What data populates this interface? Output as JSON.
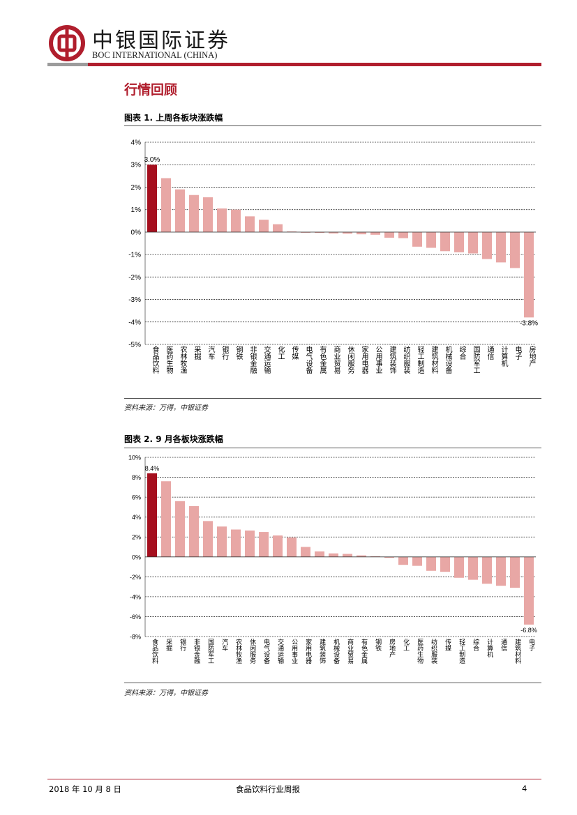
{
  "header": {
    "brand_cn": "中银国际证券",
    "brand_en": "BOC INTERNATIONAL (CHINA)",
    "logo_icon": "boc-logo-icon",
    "accent_color": "#b01e2d"
  },
  "section_title": "行情回顾",
  "charts": [
    {
      "title": "图表 1. 上周各板块涨跌幅",
      "source": "资料来源：万得，中银证券"
    },
    {
      "title": "图表 2. 9 月各板块涨跌幅",
      "source": "资料来源：万得，中银证券"
    }
  ],
  "chart_data": [
    {
      "type": "bar",
      "title": "图表 1. 上周各板块涨跌幅",
      "categories": [
        "食品饮料",
        "医药生物",
        "农林牧渔",
        "采掘",
        "汽车",
        "银行",
        "钢铁",
        "非银金融",
        "交通运输",
        "化工",
        "传媒",
        "电气设备",
        "有色金属",
        "商业贸易",
        "休闲服务",
        "家用电器",
        "公用事业",
        "建筑装饰",
        "纺织服装",
        "轻工制造",
        "建筑材料",
        "机械设备",
        "综合",
        "国防军工",
        "通信",
        "计算机",
        "电子",
        "房地产"
      ],
      "values": [
        3.0,
        2.4,
        1.9,
        1.65,
        1.55,
        1.05,
        1.0,
        0.7,
        0.55,
        0.35,
        0.0,
        -0.02,
        -0.04,
        -0.06,
        -0.07,
        -0.1,
        -0.12,
        -0.25,
        -0.27,
        -0.65,
        -0.7,
        -0.85,
        -0.9,
        -0.95,
        -1.2,
        -1.35,
        -1.6,
        -3.8
      ],
      "ylim": [
        -5,
        4
      ],
      "yticks": [
        4,
        3,
        2,
        1,
        0,
        -1,
        -2,
        -3,
        -4,
        -5
      ],
      "ytick_labels": [
        "4%",
        "3%",
        "2%",
        "1%",
        "0%",
        "-1%",
        "-2%",
        "-3%",
        "-4%",
        "-5%"
      ],
      "data_labels": [
        {
          "index": 0,
          "text": "3.0%"
        },
        {
          "index": 27,
          "text": "-3.8%"
        }
      ],
      "highlight_index": 0,
      "colors": {
        "highlight": "#a50f1e",
        "bar": "#e8a7a5",
        "grid": "#333333"
      },
      "grid": true
    },
    {
      "type": "bar",
      "title": "图表 2. 9 月各板块涨跌幅",
      "categories": [
        "食品饮料",
        "采掘",
        "银行",
        "非银金融",
        "国防军工",
        "汽车",
        "农林牧渔",
        "休闲服务",
        "电气设备",
        "交通运输",
        "公用事业",
        "家用电器",
        "建筑装饰",
        "机械设备",
        "商业贸易",
        "有色金属",
        "钢铁",
        "房地产",
        "化工",
        "医药生物",
        "纺织服装",
        "传媒",
        "轻工制造",
        "综合",
        "计算机",
        "通信",
        "建筑材料",
        "电子"
      ],
      "values": [
        8.4,
        7.6,
        5.6,
        5.1,
        3.6,
        3.05,
        2.75,
        2.65,
        2.5,
        2.15,
        1.95,
        1.0,
        0.55,
        0.35,
        0.3,
        0.15,
        0.02,
        -0.1,
        -0.8,
        -0.9,
        -1.4,
        -1.5,
        -2.1,
        -2.3,
        -2.7,
        -2.9,
        -3.1,
        -6.8
      ],
      "ylim": [
        -8,
        10
      ],
      "yticks": [
        10,
        8,
        6,
        4,
        2,
        0,
        -2,
        -4,
        -6,
        -8
      ],
      "ytick_labels": [
        "10%",
        "8%",
        "6%",
        "4%",
        "2%",
        "0%",
        "-2%",
        "-4%",
        "-6%",
        "-8%"
      ],
      "data_labels": [
        {
          "index": 0,
          "text": "8.4%"
        },
        {
          "index": 27,
          "text": "-6.8%"
        }
      ],
      "highlight_index": 0,
      "colors": {
        "highlight": "#a50f1e",
        "bar": "#e8a7a5",
        "grid": "#333333"
      },
      "grid": true
    }
  ],
  "footer": {
    "date": "2018 年 10 月 8 日",
    "report_name": "食品饮料行业周报",
    "page_number": "4"
  }
}
